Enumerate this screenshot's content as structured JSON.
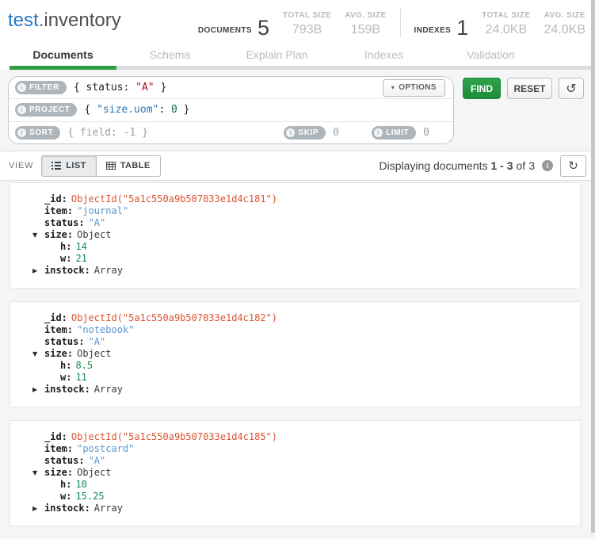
{
  "header": {
    "namespace": {
      "database": "test",
      "dot": ".",
      "collection": "inventory"
    },
    "stats": {
      "documents_label": "DOCUMENTS",
      "documents_count": "5",
      "doc_total_size_label": "TOTAL SIZE",
      "doc_total_size": "793B",
      "doc_avg_size_label": "AVG. SIZE",
      "doc_avg_size": "159B",
      "indexes_label": "INDEXES",
      "indexes_count": "1",
      "idx_total_size_label": "TOTAL SIZE",
      "idx_total_size": "24.0KB",
      "idx_avg_size_label": "AVG. SIZE",
      "idx_avg_size": "24.0KB"
    },
    "tabs": [
      {
        "label": "Documents",
        "active": true
      },
      {
        "label": "Schema",
        "active": false
      },
      {
        "label": "Explain Plan",
        "active": false
      },
      {
        "label": "Indexes",
        "active": false
      },
      {
        "label": "Validation",
        "active": false
      }
    ]
  },
  "query_bar": {
    "filter_label": "FILTER",
    "filter_parts": [
      {
        "text": "{ status: ",
        "style": "plain"
      },
      {
        "text": "\"A\"",
        "style": "string"
      },
      {
        "text": " }",
        "style": "plain"
      }
    ],
    "project_label": "PROJECT",
    "project_parts": [
      {
        "text": "{ ",
        "style": "plain"
      },
      {
        "text": "\"size.uom\"",
        "style": "property"
      },
      {
        "text": ": ",
        "style": "plain"
      },
      {
        "text": "0",
        "style": "number"
      },
      {
        "text": " }",
        "style": "plain"
      }
    ],
    "sort_label": "SORT",
    "sort_placeholder": "{ field: -1 }",
    "skip_label": "SKIP",
    "skip_value": "0",
    "limit_label": "LIMIT",
    "limit_value": "0",
    "options_label": "OPTIONS",
    "find_label": "FIND",
    "reset_label": "RESET"
  },
  "toolbar": {
    "view_label": "VIEW",
    "list_label": "LIST",
    "table_label": "TABLE",
    "status_prefix": "Displaying documents",
    "status_range": "1 - 3",
    "status_of": "of",
    "status_total": "3"
  },
  "documents": [
    {
      "fields": [
        {
          "indent": 0,
          "arrow": null,
          "key": "_id",
          "value": "ObjectId(\"5a1c550a9b507033e1d4c181\")",
          "type": "objectid"
        },
        {
          "indent": 0,
          "arrow": null,
          "key": "item",
          "value": "\"journal\"",
          "type": "string"
        },
        {
          "indent": 0,
          "arrow": null,
          "key": "status",
          "value": "\"A\"",
          "type": "string"
        },
        {
          "indent": 0,
          "arrow": "expanded",
          "key": "size",
          "value": "Object",
          "type": "plain"
        },
        {
          "indent": 1,
          "arrow": null,
          "key": "h",
          "value": "14",
          "type": "number"
        },
        {
          "indent": 1,
          "arrow": null,
          "key": "w",
          "value": "21",
          "type": "number"
        },
        {
          "indent": 0,
          "arrow": "collapsed",
          "key": "instock",
          "value": "Array",
          "type": "plain"
        }
      ]
    },
    {
      "fields": [
        {
          "indent": 0,
          "arrow": null,
          "key": "_id",
          "value": "ObjectId(\"5a1c550a9b507033e1d4c182\")",
          "type": "objectid"
        },
        {
          "indent": 0,
          "arrow": null,
          "key": "item",
          "value": "\"notebook\"",
          "type": "string"
        },
        {
          "indent": 0,
          "arrow": null,
          "key": "status",
          "value": "\"A\"",
          "type": "string"
        },
        {
          "indent": 0,
          "arrow": "expanded",
          "key": "size",
          "value": "Object",
          "type": "plain"
        },
        {
          "indent": 1,
          "arrow": null,
          "key": "h",
          "value": "8.5",
          "type": "number"
        },
        {
          "indent": 1,
          "arrow": null,
          "key": "w",
          "value": "11",
          "type": "number"
        },
        {
          "indent": 0,
          "arrow": "collapsed",
          "key": "instock",
          "value": "Array",
          "type": "plain"
        }
      ]
    },
    {
      "fields": [
        {
          "indent": 0,
          "arrow": null,
          "key": "_id",
          "value": "ObjectId(\"5a1c550a9b507033e1d4c185\")",
          "type": "objectid"
        },
        {
          "indent": 0,
          "arrow": null,
          "key": "item",
          "value": "\"postcard\"",
          "type": "string"
        },
        {
          "indent": 0,
          "arrow": null,
          "key": "status",
          "value": "\"A\"",
          "type": "string"
        },
        {
          "indent": 0,
          "arrow": "expanded",
          "key": "size",
          "value": "Object",
          "type": "plain"
        },
        {
          "indent": 1,
          "arrow": null,
          "key": "h",
          "value": "10",
          "type": "number"
        },
        {
          "indent": 1,
          "arrow": null,
          "key": "w",
          "value": "15.25",
          "type": "number"
        },
        {
          "indent": 0,
          "arrow": "collapsed",
          "key": "instock",
          "value": "Array",
          "type": "plain"
        }
      ]
    }
  ],
  "icons": {
    "info_glyph": "i",
    "caret_down_glyph": "▾",
    "history_glyph": "↺",
    "refresh_glyph": "↻",
    "expanded_glyph": "▼",
    "collapsed_glyph": "▶"
  },
  "colors": {
    "brand_blue": "#2678c4",
    "tab_green": "#2f9e44",
    "find_green": "#2fa24b",
    "pill_gray": "#aeb6bb",
    "query_string": "#aa1111",
    "query_property": "#2f73b6",
    "query_number": "#116644",
    "value_objectid": "#da5430",
    "value_string": "#5796cd",
    "value_number": "#13894e"
  }
}
